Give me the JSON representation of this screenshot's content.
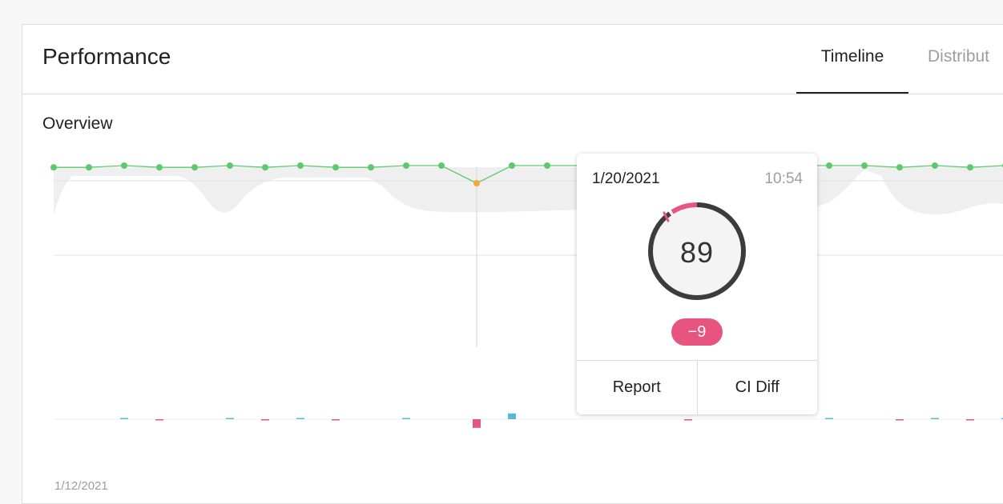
{
  "header": {
    "title": "Performance",
    "tabs": [
      {
        "label": "Timeline",
        "active": true
      },
      {
        "label": "Distribut",
        "active": false
      }
    ]
  },
  "section": {
    "title": "Overview"
  },
  "x_start_label": "1/12/2021",
  "colors": {
    "score_line": "#5cc96e",
    "highlight_point": "#f3a73b",
    "negative_delta": "#e75480",
    "positive_delta": "#5bb8d4",
    "band": "#efefef"
  },
  "chart_data": {
    "type": "line",
    "series": [
      {
        "values": [
          98,
          98,
          99,
          98,
          98,
          99,
          98,
          99,
          98,
          98,
          99,
          99,
          89,
          99,
          99,
          99,
          99,
          99,
          99,
          99,
          99,
          99,
          99,
          99,
          98,
          99,
          98,
          99,
          99,
          99
        ]
      },
      {
        "values": [
          0,
          0,
          0.3,
          -0.3,
          0,
          0.3,
          -0.3,
          0.3,
          -0.3,
          0,
          0.3,
          0,
          -9,
          6,
          0,
          0,
          0,
          0,
          -0.3,
          0,
          0,
          0,
          0.3,
          0,
          -0.3,
          0.4,
          -0.3,
          0.3,
          0,
          0
        ]
      }
    ],
    "grid": true
  },
  "tooltip": {
    "date": "1/20/2021",
    "time": "10:54",
    "score": "89",
    "delta": "−9",
    "actions": [
      "Report",
      "CI Diff"
    ]
  }
}
